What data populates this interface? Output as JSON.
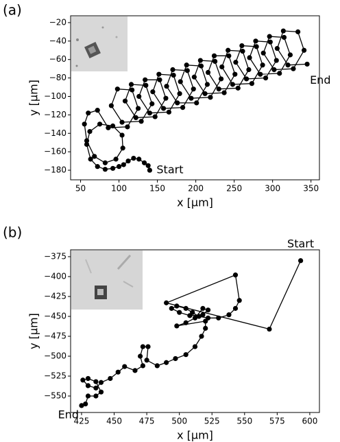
{
  "chart_data": [
    {
      "type": "line",
      "label": "(a)",
      "color": "#000000",
      "x_label": "x [μm]",
      "y_label": "y [μm]",
      "annotations": [
        "Start",
        "End"
      ],
      "xlim": [
        37,
        361
      ],
      "ylim": [
        -190.4,
        -12.6
      ],
      "xticks": [
        50,
        100,
        150,
        200,
        250,
        300,
        350
      ],
      "yticks": [
        {
          "value": -20,
          "label": "−20"
        },
        {
          "value": -40,
          "label": "−40"
        },
        {
          "value": -60,
          "label": "−60"
        },
        {
          "value": -80,
          "label": "−80"
        },
        {
          "value": -100,
          "label": "−100"
        },
        {
          "value": -120,
          "label": "−120"
        },
        {
          "value": -140,
          "label": "−140"
        },
        {
          "value": -160,
          "label": "−160"
        },
        {
          "value": -180,
          "label": "−180"
        }
      ],
      "x": [
        140,
        138,
        133,
        126,
        119,
        112,
        106,
        100,
        92,
        82,
        72,
        63,
        58,
        62,
        75,
        92,
        104,
        105,
        96,
        82,
        68,
        58,
        55,
        60,
        72,
        86,
        111,
        125,
        117,
        98,
        90,
        104,
        129,
        143,
        135,
        116,
        108,
        122,
        147,
        161,
        153,
        134,
        126,
        140,
        165,
        179,
        171,
        152,
        144,
        158,
        183,
        197,
        189,
        170,
        162,
        176,
        201,
        215,
        207,
        188,
        180,
        194,
        219,
        233,
        225,
        206,
        198,
        212,
        237,
        251,
        243,
        224,
        216,
        230,
        255,
        269,
        261,
        242,
        234,
        248,
        273,
        287,
        279,
        260,
        252,
        266,
        291,
        305,
        297,
        278,
        270,
        284,
        309,
        323,
        315,
        296,
        288,
        302,
        327,
        341,
        333,
        314,
        306,
        320,
        345
      ],
      "values": [
        -180,
        -175,
        -172,
        -168,
        -167,
        -170,
        -174,
        -176,
        -178,
        -179,
        -176,
        -168,
        -152,
        -138,
        -130,
        -132,
        -142,
        -156,
        -168,
        -172,
        -165,
        -148,
        -130,
        -118,
        -115,
        -134,
        -133,
        -113,
        -93,
        -92,
        -110,
        -128,
        -127,
        -108,
        -88,
        -87,
        -105,
        -123,
        -122,
        -102,
        -82,
        -82,
        -100,
        -118,
        -117,
        -97,
        -77,
        -76,
        -95,
        -113,
        -112,
        -92,
        -72,
        -71,
        -89,
        -107,
        -107,
        -87,
        -67,
        -66,
        -84,
        -102,
        -101,
        -81,
        -62,
        -61,
        -79,
        -97,
        -96,
        -76,
        -56,
        -56,
        -74,
        -92,
        -91,
        -71,
        -51,
        -50,
        -68,
        -87,
        -86,
        -66,
        -46,
        -45,
        -63,
        -81,
        -80,
        -61,
        -41,
        -40,
        -58,
        -76,
        -75,
        -55,
        -36,
        -35,
        -53,
        -71,
        -70,
        -50,
        -30,
        -29,
        -48,
        -66,
        -65
      ]
    },
    {
      "type": "line",
      "label": "(b)",
      "color": "#000000",
      "x_label": "x [μm]",
      "y_label": "y [μm]",
      "annotations": [
        "Start",
        "End"
      ],
      "xlim": [
        416.6,
        607.4
      ],
      "ylim": [
        -570.7,
        -366.4
      ],
      "xticks": [
        425,
        450,
        475,
        500,
        525,
        550,
        575,
        600
      ],
      "yticks": [
        {
          "value": -375,
          "label": "−375"
        },
        {
          "value": -400,
          "label": "−400"
        },
        {
          "value": -425,
          "label": "−425"
        },
        {
          "value": -450,
          "label": "−450"
        },
        {
          "value": -475,
          "label": "−475"
        },
        {
          "value": -500,
          "label": "−500"
        },
        {
          "value": -525,
          "label": "−525"
        },
        {
          "value": -550,
          "label": "−550"
        }
      ],
      "x": [
        593,
        569,
        490,
        543,
        546,
        543,
        538,
        530,
        522,
        515,
        510,
        505,
        498,
        494,
        500,
        508,
        518,
        522,
        518,
        512,
        505,
        498,
        520,
        520,
        517,
        512,
        505,
        497,
        490,
        483,
        475,
        476,
        472,
        470,
        472,
        466,
        458,
        453,
        447,
        440,
        436,
        430,
        426,
        430,
        436,
        440,
        436,
        430,
        428,
        425
      ],
      "values": [
        -380,
        -466,
        -433,
        -398,
        -430,
        -440,
        -448,
        -452,
        -452,
        -450,
        -445,
        -440,
        -437,
        -440,
        -445,
        -449,
        -448,
        -442,
        -440,
        -452,
        -458,
        -462,
        -456,
        -465,
        -475,
        -488,
        -498,
        -503,
        -508,
        -512,
        -505,
        -488,
        -488,
        -500,
        -512,
        -518,
        -513,
        -520,
        -528,
        -533,
        -540,
        -537,
        -530,
        -528,
        -532,
        -545,
        -550,
        -550,
        -560,
        -562
      ]
    }
  ]
}
